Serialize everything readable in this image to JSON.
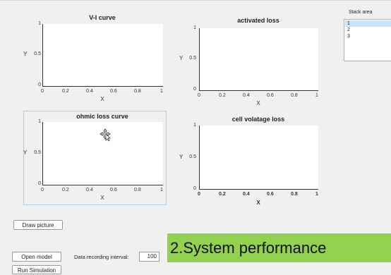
{
  "plots": [
    {
      "id": "vi-curve",
      "title": "V-I curve",
      "xlabel": "X",
      "ylabel": "Y",
      "yticks": [
        "1",
        "0.5",
        "0"
      ],
      "xticks": [
        "0",
        "0.2",
        "0.4",
        "0.6",
        "0.8",
        "1"
      ]
    },
    {
      "id": "activated-loss",
      "title": "activated loss",
      "xlabel": "X",
      "ylabel": "Y",
      "yticks": [
        "1",
        "0.5",
        "0"
      ],
      "xticks": [
        "0",
        "0.2",
        "0.4",
        "0.6",
        "0.8",
        "1"
      ]
    },
    {
      "id": "ohmic-loss",
      "title": "ohmic loss curve",
      "xlabel": "X",
      "ylabel": "Y",
      "yticks": [
        "1",
        "0.5",
        "0"
      ],
      "xticks": [
        "0",
        "0.2",
        "0.4",
        "0.6",
        "0.8",
        "1"
      ]
    },
    {
      "id": "cell-voltage-loss",
      "title": "cell volatage loss",
      "xlabel": "X",
      "ylabel": "Y",
      "yticks": [
        "1",
        "0.5",
        "0"
      ],
      "xticks": [
        "0",
        "0.2",
        "0.4",
        "0.6",
        "0.8",
        "1"
      ]
    }
  ],
  "stack_area": {
    "label": "Stack area",
    "items": [
      "1",
      "2",
      "3"
    ],
    "selected": "1"
  },
  "buttons": {
    "draw_picture": "Draw picture",
    "open_model": "Open model",
    "run_simulation": "Run Simulation"
  },
  "recording": {
    "label": "Data recording interval:",
    "value": "100"
  },
  "banner": "2.System performance",
  "colors": {
    "panel_selection_border": "#a9cff2",
    "listbox_selected": "#cce4f7",
    "banner_bg": "#92d050"
  }
}
